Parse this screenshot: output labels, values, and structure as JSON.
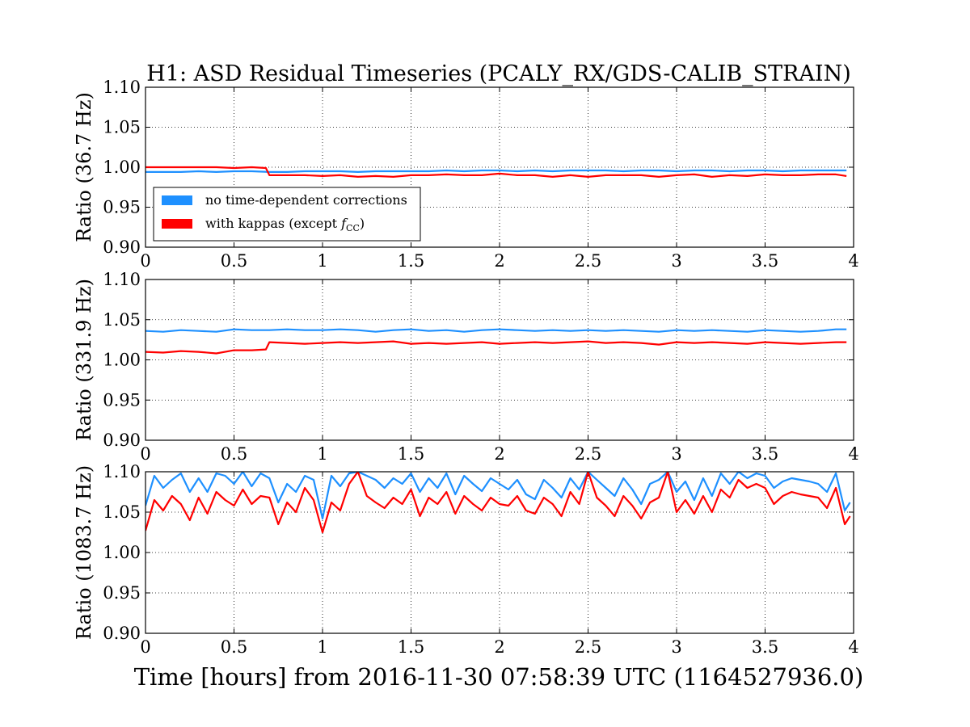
{
  "figure": {
    "title": "H1: ASD Residual Timeseries (PCALY_RX/GDS-CALIB_STRAIN)",
    "xlabel": "Time [hours] from 2016-11-30 07:58:39 UTC (1164527936.0)"
  },
  "legend": {
    "placement": "center-left",
    "entries": [
      {
        "series_index": 0,
        "label": "no time-dependent corrections",
        "color": "#1e90ff"
      },
      {
        "series_index": 1,
        "label": "with kappas (except f_CC)",
        "color": "#ff0000",
        "label_main": "with kappas (except ",
        "label_italic": "f",
        "label_sub": "CC",
        "label_close": ")"
      }
    ]
  },
  "chart_data": [
    {
      "type": "line",
      "ylabel": "Ratio (36.7 Hz)",
      "xlim": [
        0,
        4
      ],
      "ylim": [
        0.9,
        1.1
      ],
      "grid": true,
      "x_ticks": [
        "0",
        "0.5",
        "1",
        "1.5",
        "2",
        "2.5",
        "3",
        "3.5",
        "4"
      ],
      "y_ticks": [
        "0.90",
        "0.95",
        "1.00",
        "1.05",
        "1.10"
      ],
      "series": [
        {
          "color": "#1e90ff",
          "x": [
            0,
            0.1,
            0.2,
            0.3,
            0.4,
            0.5,
            0.6,
            0.7,
            0.8,
            0.9,
            1.0,
            1.1,
            1.2,
            1.3,
            1.4,
            1.5,
            1.6,
            1.7,
            1.8,
            1.9,
            2.0,
            2.1,
            2.2,
            2.3,
            2.4,
            2.5,
            2.6,
            2.7,
            2.8,
            2.9,
            3.0,
            3.1,
            3.2,
            3.3,
            3.4,
            3.5,
            3.6,
            3.7,
            3.8,
            3.9,
            3.96
          ],
          "values": [
            0.994,
            0.994,
            0.994,
            0.995,
            0.994,
            0.995,
            0.995,
            0.994,
            0.994,
            0.995,
            0.995,
            0.995,
            0.994,
            0.995,
            0.995,
            0.995,
            0.995,
            0.996,
            0.995,
            0.996,
            0.996,
            0.995,
            0.996,
            0.995,
            0.996,
            0.996,
            0.996,
            0.995,
            0.996,
            0.996,
            0.995,
            0.996,
            0.996,
            0.995,
            0.996,
            0.996,
            0.995,
            0.996,
            0.996,
            0.996,
            0.996
          ]
        },
        {
          "color": "#ff0000",
          "x": [
            0,
            0.1,
            0.2,
            0.3,
            0.4,
            0.5,
            0.6,
            0.68,
            0.7,
            0.8,
            0.9,
            1.0,
            1.1,
            1.2,
            1.3,
            1.4,
            1.5,
            1.6,
            1.7,
            1.8,
            1.9,
            2.0,
            2.1,
            2.2,
            2.3,
            2.4,
            2.5,
            2.6,
            2.7,
            2.8,
            2.9,
            3.0,
            3.1,
            3.2,
            3.3,
            3.4,
            3.5,
            3.6,
            3.7,
            3.8,
            3.9,
            3.96
          ],
          "values": [
            1.0,
            1.0,
            1.0,
            1.0,
            1.0,
            0.999,
            1.0,
            0.999,
            0.99,
            0.99,
            0.99,
            0.989,
            0.99,
            0.988,
            0.989,
            0.988,
            0.99,
            0.99,
            0.991,
            0.99,
            0.99,
            0.992,
            0.99,
            0.99,
            0.988,
            0.99,
            0.988,
            0.99,
            0.99,
            0.99,
            0.988,
            0.99,
            0.991,
            0.988,
            0.99,
            0.989,
            0.991,
            0.99,
            0.99,
            0.991,
            0.991,
            0.989
          ]
        }
      ]
    },
    {
      "type": "line",
      "ylabel": "Ratio (331.9 Hz)",
      "xlim": [
        0,
        4
      ],
      "ylim": [
        0.9,
        1.1
      ],
      "grid": true,
      "x_ticks": [
        "0",
        "0.5",
        "1",
        "1.5",
        "2",
        "2.5",
        "3",
        "3.5",
        "4"
      ],
      "y_ticks": [
        "0.90",
        "0.95",
        "1.00",
        "1.05",
        "1.10"
      ],
      "series": [
        {
          "color": "#1e90ff",
          "x": [
            0,
            0.1,
            0.2,
            0.3,
            0.4,
            0.5,
            0.6,
            0.7,
            0.8,
            0.9,
            1.0,
            1.1,
            1.2,
            1.3,
            1.4,
            1.5,
            1.6,
            1.7,
            1.8,
            1.9,
            2.0,
            2.1,
            2.2,
            2.3,
            2.4,
            2.5,
            2.6,
            2.7,
            2.8,
            2.9,
            3.0,
            3.1,
            3.2,
            3.3,
            3.4,
            3.5,
            3.6,
            3.7,
            3.8,
            3.9,
            3.96
          ],
          "values": [
            1.036,
            1.035,
            1.037,
            1.036,
            1.035,
            1.038,
            1.037,
            1.037,
            1.038,
            1.037,
            1.037,
            1.038,
            1.037,
            1.035,
            1.037,
            1.038,
            1.036,
            1.037,
            1.035,
            1.037,
            1.038,
            1.037,
            1.036,
            1.037,
            1.036,
            1.037,
            1.036,
            1.037,
            1.036,
            1.035,
            1.037,
            1.036,
            1.037,
            1.036,
            1.035,
            1.037,
            1.036,
            1.035,
            1.036,
            1.038,
            1.038
          ]
        },
        {
          "color": "#ff0000",
          "x": [
            0,
            0.1,
            0.2,
            0.3,
            0.4,
            0.5,
            0.6,
            0.68,
            0.7,
            0.8,
            0.9,
            1.0,
            1.1,
            1.2,
            1.3,
            1.4,
            1.5,
            1.6,
            1.7,
            1.8,
            1.9,
            2.0,
            2.1,
            2.2,
            2.3,
            2.4,
            2.5,
            2.6,
            2.7,
            2.8,
            2.9,
            3.0,
            3.1,
            3.2,
            3.3,
            3.4,
            3.5,
            3.6,
            3.7,
            3.8,
            3.9,
            3.96
          ],
          "values": [
            1.01,
            1.009,
            1.011,
            1.01,
            1.008,
            1.012,
            1.012,
            1.013,
            1.022,
            1.021,
            1.02,
            1.021,
            1.022,
            1.021,
            1.022,
            1.023,
            1.02,
            1.021,
            1.02,
            1.021,
            1.022,
            1.02,
            1.021,
            1.022,
            1.021,
            1.022,
            1.023,
            1.021,
            1.022,
            1.021,
            1.019,
            1.022,
            1.021,
            1.022,
            1.021,
            1.02,
            1.022,
            1.021,
            1.02,
            1.021,
            1.022,
            1.022
          ]
        }
      ]
    },
    {
      "type": "line",
      "ylabel": "Ratio (1083.7 Hz)",
      "xlim": [
        0,
        4
      ],
      "ylim": [
        0.9,
        1.1
      ],
      "grid": true,
      "x_ticks": [
        "0",
        "0.5",
        "1",
        "1.5",
        "2",
        "2.5",
        "3",
        "3.5",
        "4"
      ],
      "y_ticks": [
        "0.90",
        "0.95",
        "1.00",
        "1.05",
        "1.10"
      ],
      "series": [
        {
          "color": "#1e90ff",
          "x": [
            0,
            0.05,
            0.1,
            0.15,
            0.2,
            0.25,
            0.3,
            0.35,
            0.4,
            0.45,
            0.5,
            0.55,
            0.6,
            0.65,
            0.7,
            0.75,
            0.8,
            0.85,
            0.9,
            0.95,
            1.0,
            1.05,
            1.1,
            1.15,
            1.2,
            1.25,
            1.3,
            1.35,
            1.4,
            1.45,
            1.5,
            1.55,
            1.6,
            1.65,
            1.7,
            1.75,
            1.8,
            1.85,
            1.9,
            1.95,
            2.0,
            2.05,
            2.1,
            2.15,
            2.2,
            2.25,
            2.3,
            2.35,
            2.4,
            2.45,
            2.5,
            2.55,
            2.6,
            2.65,
            2.7,
            2.75,
            2.8,
            2.85,
            2.9,
            2.95,
            3.0,
            3.05,
            3.1,
            3.15,
            3.2,
            3.25,
            3.3,
            3.35,
            3.4,
            3.45,
            3.5,
            3.55,
            3.6,
            3.65,
            3.7,
            3.75,
            3.8,
            3.85,
            3.9,
            3.95,
            3.98
          ],
          "values": [
            1.058,
            1.095,
            1.08,
            1.09,
            1.098,
            1.075,
            1.092,
            1.075,
            1.098,
            1.095,
            1.085,
            1.1,
            1.082,
            1.098,
            1.092,
            1.062,
            1.085,
            1.075,
            1.095,
            1.09,
            1.042,
            1.095,
            1.082,
            1.098,
            1.1,
            1.095,
            1.09,
            1.08,
            1.092,
            1.085,
            1.098,
            1.075,
            1.092,
            1.08,
            1.098,
            1.072,
            1.095,
            1.085,
            1.076,
            1.092,
            1.085,
            1.078,
            1.09,
            1.072,
            1.066,
            1.09,
            1.08,
            1.068,
            1.092,
            1.078,
            1.1,
            1.09,
            1.08,
            1.07,
            1.092,
            1.078,
            1.06,
            1.085,
            1.09,
            1.1,
            1.075,
            1.088,
            1.065,
            1.092,
            1.07,
            1.098,
            1.085,
            1.1,
            1.092,
            1.098,
            1.095,
            1.08,
            1.088,
            1.092,
            1.09,
            1.088,
            1.085,
            1.075,
            1.098,
            1.052,
            1.062
          ]
        },
        {
          "color": "#ff0000",
          "x": [
            0,
            0.05,
            0.1,
            0.15,
            0.2,
            0.25,
            0.3,
            0.35,
            0.4,
            0.45,
            0.5,
            0.55,
            0.6,
            0.65,
            0.7,
            0.75,
            0.8,
            0.85,
            0.9,
            0.95,
            1.0,
            1.05,
            1.1,
            1.15,
            1.2,
            1.25,
            1.3,
            1.35,
            1.4,
            1.45,
            1.5,
            1.55,
            1.6,
            1.65,
            1.7,
            1.75,
            1.8,
            1.85,
            1.9,
            1.95,
            2.0,
            2.05,
            2.1,
            2.15,
            2.2,
            2.25,
            2.3,
            2.35,
            2.4,
            2.45,
            2.5,
            2.55,
            2.6,
            2.65,
            2.7,
            2.75,
            2.8,
            2.85,
            2.9,
            2.95,
            3.0,
            3.05,
            3.1,
            3.15,
            3.2,
            3.25,
            3.3,
            3.35,
            3.4,
            3.45,
            3.5,
            3.55,
            3.6,
            3.65,
            3.7,
            3.75,
            3.8,
            3.85,
            3.9,
            3.95,
            3.98
          ],
          "values": [
            1.027,
            1.065,
            1.052,
            1.07,
            1.06,
            1.04,
            1.068,
            1.048,
            1.075,
            1.065,
            1.058,
            1.078,
            1.06,
            1.07,
            1.068,
            1.035,
            1.062,
            1.05,
            1.08,
            1.065,
            1.025,
            1.062,
            1.052,
            1.085,
            1.1,
            1.07,
            1.062,
            1.055,
            1.068,
            1.06,
            1.078,
            1.045,
            1.068,
            1.06,
            1.075,
            1.048,
            1.07,
            1.06,
            1.052,
            1.068,
            1.06,
            1.058,
            1.07,
            1.052,
            1.048,
            1.068,
            1.06,
            1.045,
            1.075,
            1.06,
            1.1,
            1.068,
            1.058,
            1.045,
            1.07,
            1.058,
            1.042,
            1.062,
            1.068,
            1.1,
            1.05,
            1.065,
            1.048,
            1.07,
            1.05,
            1.078,
            1.068,
            1.09,
            1.08,
            1.085,
            1.08,
            1.06,
            1.07,
            1.075,
            1.072,
            1.07,
            1.068,
            1.055,
            1.08,
            1.035,
            1.045
          ]
        }
      ]
    }
  ]
}
